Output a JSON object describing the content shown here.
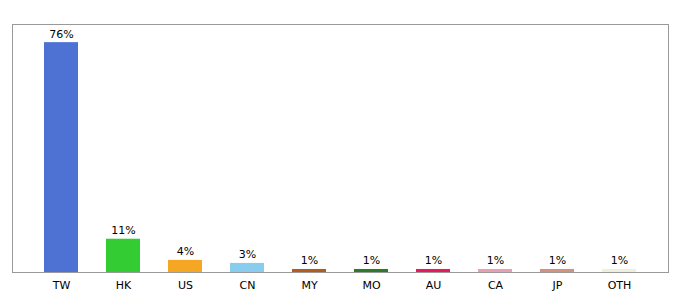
{
  "chart_data": {
    "type": "bar",
    "categories": [
      "TW",
      "HK",
      "US",
      "CN",
      "MY",
      "MO",
      "AU",
      "CA",
      "JP",
      "OTH"
    ],
    "values": [
      76,
      11,
      4,
      3,
      1,
      1,
      1,
      1,
      1,
      1
    ],
    "value_labels": [
      "76%",
      "11%",
      "4%",
      "3%",
      "1%",
      "1%",
      "1%",
      "1%",
      "1%",
      "1%"
    ],
    "colors": [
      "#4d72d4",
      "#33cc33",
      "#f5a623",
      "#88ccee",
      "#b35c1e",
      "#2d7a2d",
      "#e8185c",
      "#e8a0b0",
      "#d49080",
      "#f0eedc"
    ],
    "ylim": [
      0,
      82
    ],
    "data_labels": true,
    "tick_labels": "x",
    "grid": false
  }
}
